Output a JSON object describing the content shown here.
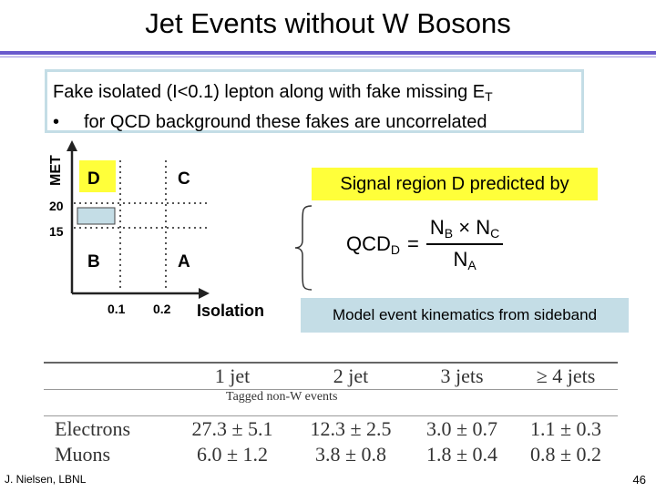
{
  "title": "Jet Events without W Bosons",
  "intro": {
    "line1_pre": "Fake isolated (I<0.1) lepton along with fake missing E",
    "line1_sub": "T",
    "bullet": "•",
    "line2": "for QCD background these fakes are uncorrelated"
  },
  "diagram": {
    "y_axis_label": "MET",
    "x_axis_label": "Isolation",
    "y_ticks": [
      "20",
      "15"
    ],
    "x_ticks": [
      "0.1",
      "0.2"
    ],
    "regions": [
      "D",
      "C",
      "B",
      "A"
    ],
    "colors": {
      "region_D": "#ffff3a",
      "signal_band": "#c4dde6"
    }
  },
  "signal": {
    "label": "Signal region D predicted by",
    "formula": {
      "lhs": "QCD",
      "lhs_sub": "D",
      "eq": "=",
      "num_a": "N",
      "num_a_sub": "B",
      "times": "×",
      "num_b": "N",
      "num_b_sub": "C",
      "den": "N",
      "den_sub": "A"
    }
  },
  "model_label": "Model event kinematics from sideband",
  "table": {
    "headers": [
      "",
      "1 jet",
      "2 jet",
      "3 jets",
      "≥ 4 jets"
    ],
    "caption": "Tagged non-W events",
    "rows": [
      {
        "label": "Electrons",
        "values": [
          "27.3 ± 5.1",
          "12.3 ± 2.5",
          "3.0 ± 0.7",
          "1.1 ± 0.3"
        ]
      },
      {
        "label": "Muons",
        "values": [
          "6.0 ± 1.2",
          "3.8 ± 0.8",
          "1.8 ± 0.4",
          "0.8 ± 0.2"
        ]
      }
    ]
  },
  "footer": {
    "author": "J. Nielsen, LBNL",
    "page": "46"
  }
}
